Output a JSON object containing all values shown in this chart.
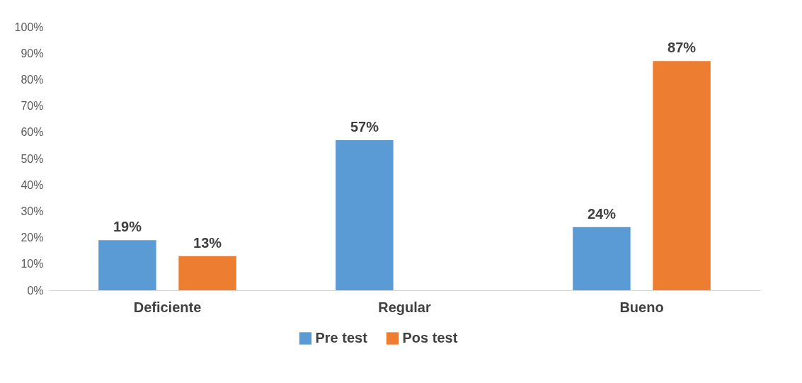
{
  "chart_data": {
    "type": "bar",
    "categories": [
      "Deficiente",
      "Regular",
      "Bueno"
    ],
    "series": [
      {
        "name": "Pre test",
        "color": "#5b9bd5",
        "values": [
          19,
          57,
          24
        ],
        "value_labels": [
          "19%",
          "57%",
          "24%"
        ]
      },
      {
        "name": "Pos test",
        "color": "#ed7d31",
        "values": [
          13,
          null,
          87
        ],
        "value_labels": [
          "13%",
          null,
          "87%"
        ]
      }
    ],
    "ylim": [
      0,
      100
    ],
    "yticks": [
      {
        "value": 0,
        "label": "0%"
      },
      {
        "value": 10,
        "label": "10%"
      },
      {
        "value": 20,
        "label": "20%"
      },
      {
        "value": 30,
        "label": "30%"
      },
      {
        "value": 40,
        "label": "40%"
      },
      {
        "value": 50,
        "label": "50%"
      },
      {
        "value": 60,
        "label": "60%"
      },
      {
        "value": 70,
        "label": "70%"
      },
      {
        "value": 80,
        "label": "80%"
      },
      {
        "value": 90,
        "label": "90%"
      },
      {
        "value": 100,
        "label": "100%"
      }
    ],
    "grid": false,
    "legend": "bottom"
  }
}
